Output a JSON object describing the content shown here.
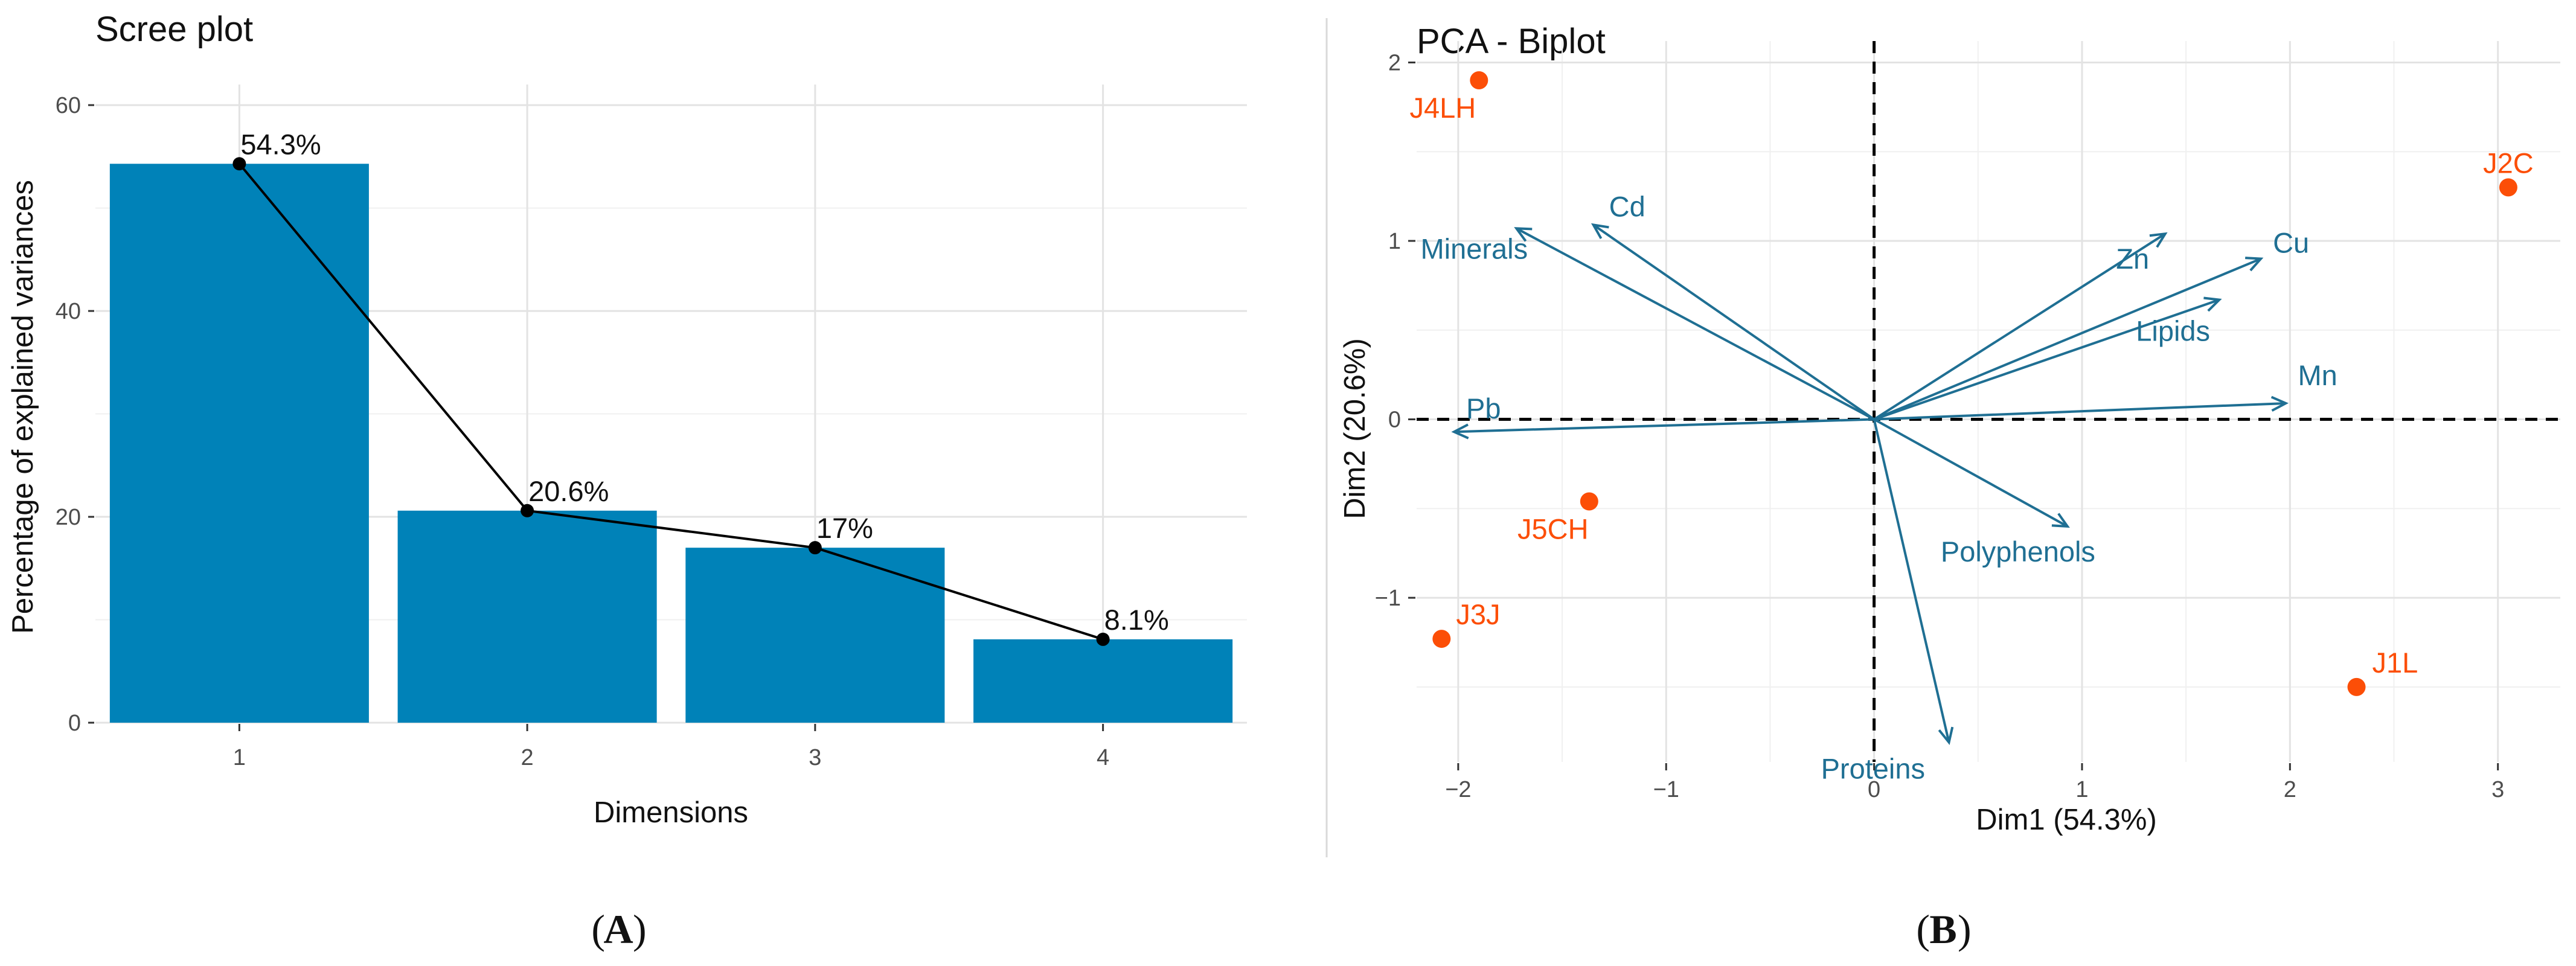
{
  "panels": {
    "a_label": "A",
    "b_label": "B"
  },
  "chart_data": [
    {
      "type": "bar",
      "title": "Scree plot",
      "xlabel": "Dimensions",
      "ylabel": "Percentage of explained variances",
      "categories": [
        "1",
        "2",
        "3",
        "4"
      ],
      "values": [
        54.3,
        20.6,
        17,
        8.1
      ],
      "data_labels": [
        "54.3%",
        "20.6%",
        "17%",
        "8.1%"
      ],
      "ylim": [
        0,
        62
      ],
      "yticks": [
        0,
        20,
        40,
        60
      ],
      "grid": true,
      "line_overlay": true,
      "bar_color": "#0082b8",
      "line_color": "#000000"
    },
    {
      "type": "scatter",
      "title": "PCA - Biplot",
      "xlabel": "Dim1 (54.3%)",
      "ylabel": "Dim2 (20.6%)",
      "xlim": [
        -2.2,
        3.3
      ],
      "ylim": [
        -1.92,
        2.12
      ],
      "xticks": [
        -2,
        -1,
        0,
        1,
        2,
        3
      ],
      "xtick_labels": [
        "−2",
        "−1",
        "0",
        "1",
        "2",
        "3"
      ],
      "yticks": [
        -1,
        0,
        1,
        2
      ],
      "ytick_labels": [
        "−1",
        "0",
        "1",
        "2"
      ],
      "grid": true,
      "reference_lines": [
        0,
        0
      ],
      "individual_color": "#fc4e07",
      "variable_color": "#1f6f93",
      "individuals": [
        {
          "name": "J4LH",
          "x": -1.9,
          "y": 1.9
        },
        {
          "name": "J2C",
          "x": 3.05,
          "y": 1.3
        },
        {
          "name": "J5CH",
          "x": -1.37,
          "y": -0.46
        },
        {
          "name": "J3J",
          "x": -2.08,
          "y": -1.23
        },
        {
          "name": "J1L",
          "x": 2.32,
          "y": -1.5
        }
      ],
      "variables": [
        {
          "name": "Minerals",
          "x": -1.72,
          "y": 1.07
        },
        {
          "name": "Cd",
          "x": -1.35,
          "y": 1.09
        },
        {
          "name": "Zn",
          "x": 1.4,
          "y": 1.04
        },
        {
          "name": "Cu",
          "x": 1.86,
          "y": 0.9
        },
        {
          "name": "Lipids",
          "x": 1.66,
          "y": 0.67
        },
        {
          "name": "Mn",
          "x": 1.98,
          "y": 0.09
        },
        {
          "name": "Pb",
          "x": -2.02,
          "y": -0.07
        },
        {
          "name": "Polyphenols",
          "x": 0.93,
          "y": -0.6
        },
        {
          "name": "Proteins",
          "x": 0.36,
          "y": -1.81
        }
      ]
    }
  ]
}
